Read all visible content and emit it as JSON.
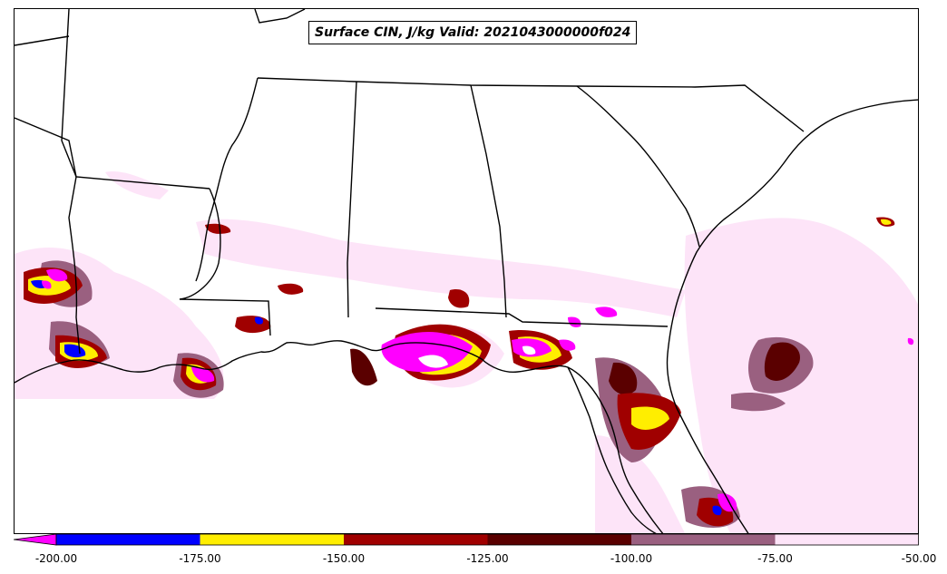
{
  "title": "Surface CIN, J/kg Valid: 2021043000000f024",
  "colorbar": {
    "extend": "min",
    "ticks": [
      "-200.00",
      "-175.00",
      "-150.00",
      "-125.00",
      "-100.00",
      "-75.00",
      "-50.00"
    ],
    "bins": [
      {
        "from": -200,
        "to": -175,
        "color": "#0000ff"
      },
      {
        "from": -175,
        "to": -150,
        "color": "#ffee00"
      },
      {
        "from": -150,
        "to": -125,
        "color": "#a00000"
      },
      {
        "from": -125,
        "to": -100,
        "color": "#5a0000"
      },
      {
        "from": -100,
        "to": -75,
        "color": "#9a6080"
      },
      {
        "from": -75,
        "to": -50,
        "color": "#fde4f8"
      }
    ],
    "under_color": "#ff00ff"
  },
  "legend_colors": {
    "below_-200": "#ff00ff",
    "boundary_line": "#000000",
    "background": "#ffffff"
  }
}
